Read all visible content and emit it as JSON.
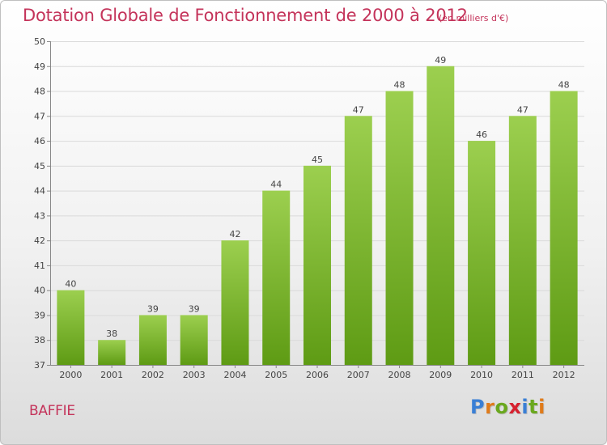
{
  "header": {
    "title": "Dotation Globale de Fonctionnement de 2000 à 2012",
    "subtitle": "(en milliers d'€)"
  },
  "footer": {
    "commune": "BAFFIE",
    "brand": "Proxiti"
  },
  "colors": {
    "title": "#c4335a",
    "bar_top": "#9ccf4f",
    "bar_bottom": "#5e9b14",
    "brand_letters": [
      "#3a7fd5",
      "#e07b1a",
      "#6aa81e",
      "#d6212f",
      "#3a7fd5",
      "#6aa81e",
      "#e07b1a"
    ]
  },
  "chart_data": {
    "type": "bar",
    "categories": [
      "2000",
      "2001",
      "2002",
      "2003",
      "2004",
      "2005",
      "2006",
      "2007",
      "2008",
      "2009",
      "2010",
      "2011",
      "2012"
    ],
    "values": [
      40,
      38,
      39,
      39,
      42,
      44,
      45,
      47,
      48,
      49,
      46,
      47,
      48
    ],
    "ylim": [
      37,
      50
    ],
    "yticks": [
      37,
      38,
      39,
      40,
      41,
      42,
      43,
      44,
      45,
      46,
      47,
      48,
      49,
      50
    ],
    "grid": true,
    "legend": "none"
  }
}
